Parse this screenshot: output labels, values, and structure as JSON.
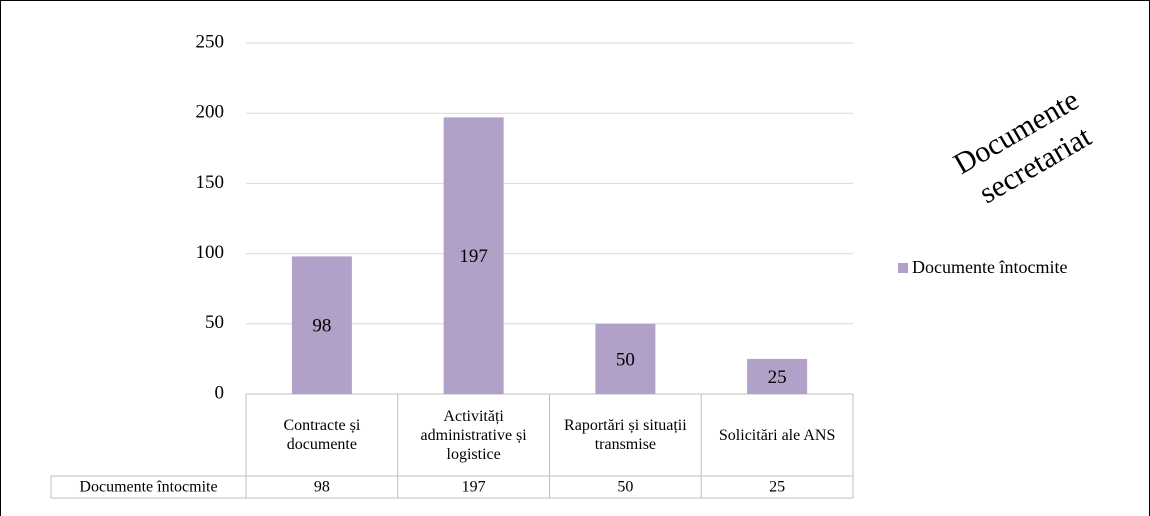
{
  "chart_data": {
    "type": "bar",
    "title": "Documente secretariat",
    "categories": [
      "Contracte și documente",
      "Activități administrative și logistice",
      "Raportări și situații transmise",
      "Solicitări ale ANS"
    ],
    "series": [
      {
        "name": "Documente întocmite",
        "color": "#b1a0c7",
        "values": [
          98,
          197,
          50,
          25
        ]
      }
    ],
    "ylim": [
      0,
      250
    ],
    "yticks": [
      0,
      50,
      100,
      150,
      200,
      250
    ],
    "grid": true,
    "legend": "right",
    "data_table": true
  }
}
